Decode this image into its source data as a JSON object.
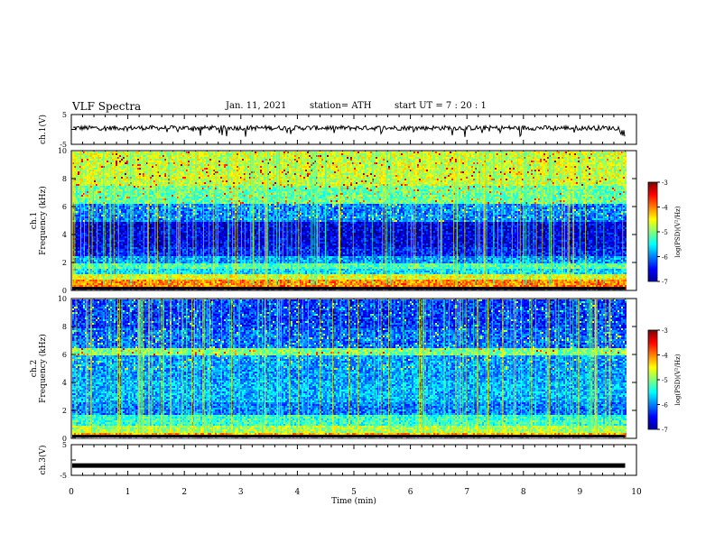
{
  "header": {
    "title": "VLF Spectra",
    "date": "Jan. 11, 2021",
    "station": "station= ATH",
    "start_ut": "start UT =  7 : 20 : 1"
  },
  "chart_data": [
    {
      "type": "line",
      "ylabel": "ch.1(V)",
      "ylim": [
        -5,
        5
      ],
      "yticks": [
        "5",
        "-5"
      ],
      "description_hidden": false
    },
    {
      "type": "heatmap",
      "ylabel": "Frequency (kHz)",
      "channel_label": "ch.1",
      "ylim": [
        0,
        10
      ],
      "yticks": [
        "0",
        "2",
        "4",
        "6",
        "8",
        "10"
      ],
      "colorbar": {
        "label": "log(PSD)(V²/Hz)",
        "range": [
          -7,
          -3
        ],
        "ticks": [
          "-3",
          "-4",
          "-5",
          "-6",
          "-7"
        ]
      },
      "bands": [
        {
          "from": 0,
          "to": 0.3,
          "level": -3.3
        },
        {
          "from": 0.3,
          "to": 0.8,
          "level": -4.0
        },
        {
          "from": 0.8,
          "to": 1.2,
          "level": -4.6
        },
        {
          "from": 1.2,
          "to": 1.6,
          "level": -5.6
        },
        {
          "from": 1.6,
          "to": 2.0,
          "level": -5.2
        },
        {
          "from": 2.0,
          "to": 2.5,
          "level": -5.9
        },
        {
          "from": 2.5,
          "to": 3.2,
          "level": -6.4
        },
        {
          "from": 3.2,
          "to": 5.0,
          "level": -6.6
        },
        {
          "from": 5.0,
          "to": 6.3,
          "level": -6.0
        },
        {
          "from": 6.3,
          "to": 7.5,
          "level": -5.1
        },
        {
          "from": 7.5,
          "to": 10,
          "level": -4.7
        }
      ]
    },
    {
      "type": "heatmap",
      "ylabel": "Frequency (kHz)",
      "channel_label": "ch.2",
      "ylim": [
        0,
        10
      ],
      "yticks": [
        "0",
        "2",
        "4",
        "6",
        "8",
        "10"
      ],
      "colorbar": {
        "label": "log(PSD)(V²/Hz)",
        "range": [
          -7,
          -3
        ],
        "ticks": [
          "-3",
          "-4",
          "-5",
          "-6",
          "-7"
        ]
      },
      "bands": [
        {
          "from": 0,
          "to": 0.4,
          "level": -4.2
        },
        {
          "from": 0.4,
          "to": 1.0,
          "level": -4.8
        },
        {
          "from": 1.0,
          "to": 1.8,
          "level": -5.3
        },
        {
          "from": 1.8,
          "to": 2.6,
          "level": -6.0
        },
        {
          "from": 2.6,
          "to": 4.2,
          "level": -5.8
        },
        {
          "from": 4.2,
          "to": 6.0,
          "level": -5.9
        },
        {
          "from": 6.0,
          "to": 6.5,
          "level": -5.0
        },
        {
          "from": 6.5,
          "to": 8.0,
          "level": -6.1
        },
        {
          "from": 8.0,
          "to": 10,
          "level": -6.3
        }
      ]
    },
    {
      "type": "line",
      "ylabel": "ch.3(V)",
      "ylim": [
        -5,
        5
      ],
      "yticks": [
        "5",
        "-5"
      ],
      "constant_value": -1.8
    }
  ],
  "time_axis": {
    "label": "Time  (min)",
    "range": [
      0,
      10
    ],
    "ticks": [
      "0",
      "1",
      "2",
      "3",
      "4",
      "5",
      "6",
      "7",
      "8",
      "9",
      "10"
    ],
    "data_end": 9.8
  }
}
